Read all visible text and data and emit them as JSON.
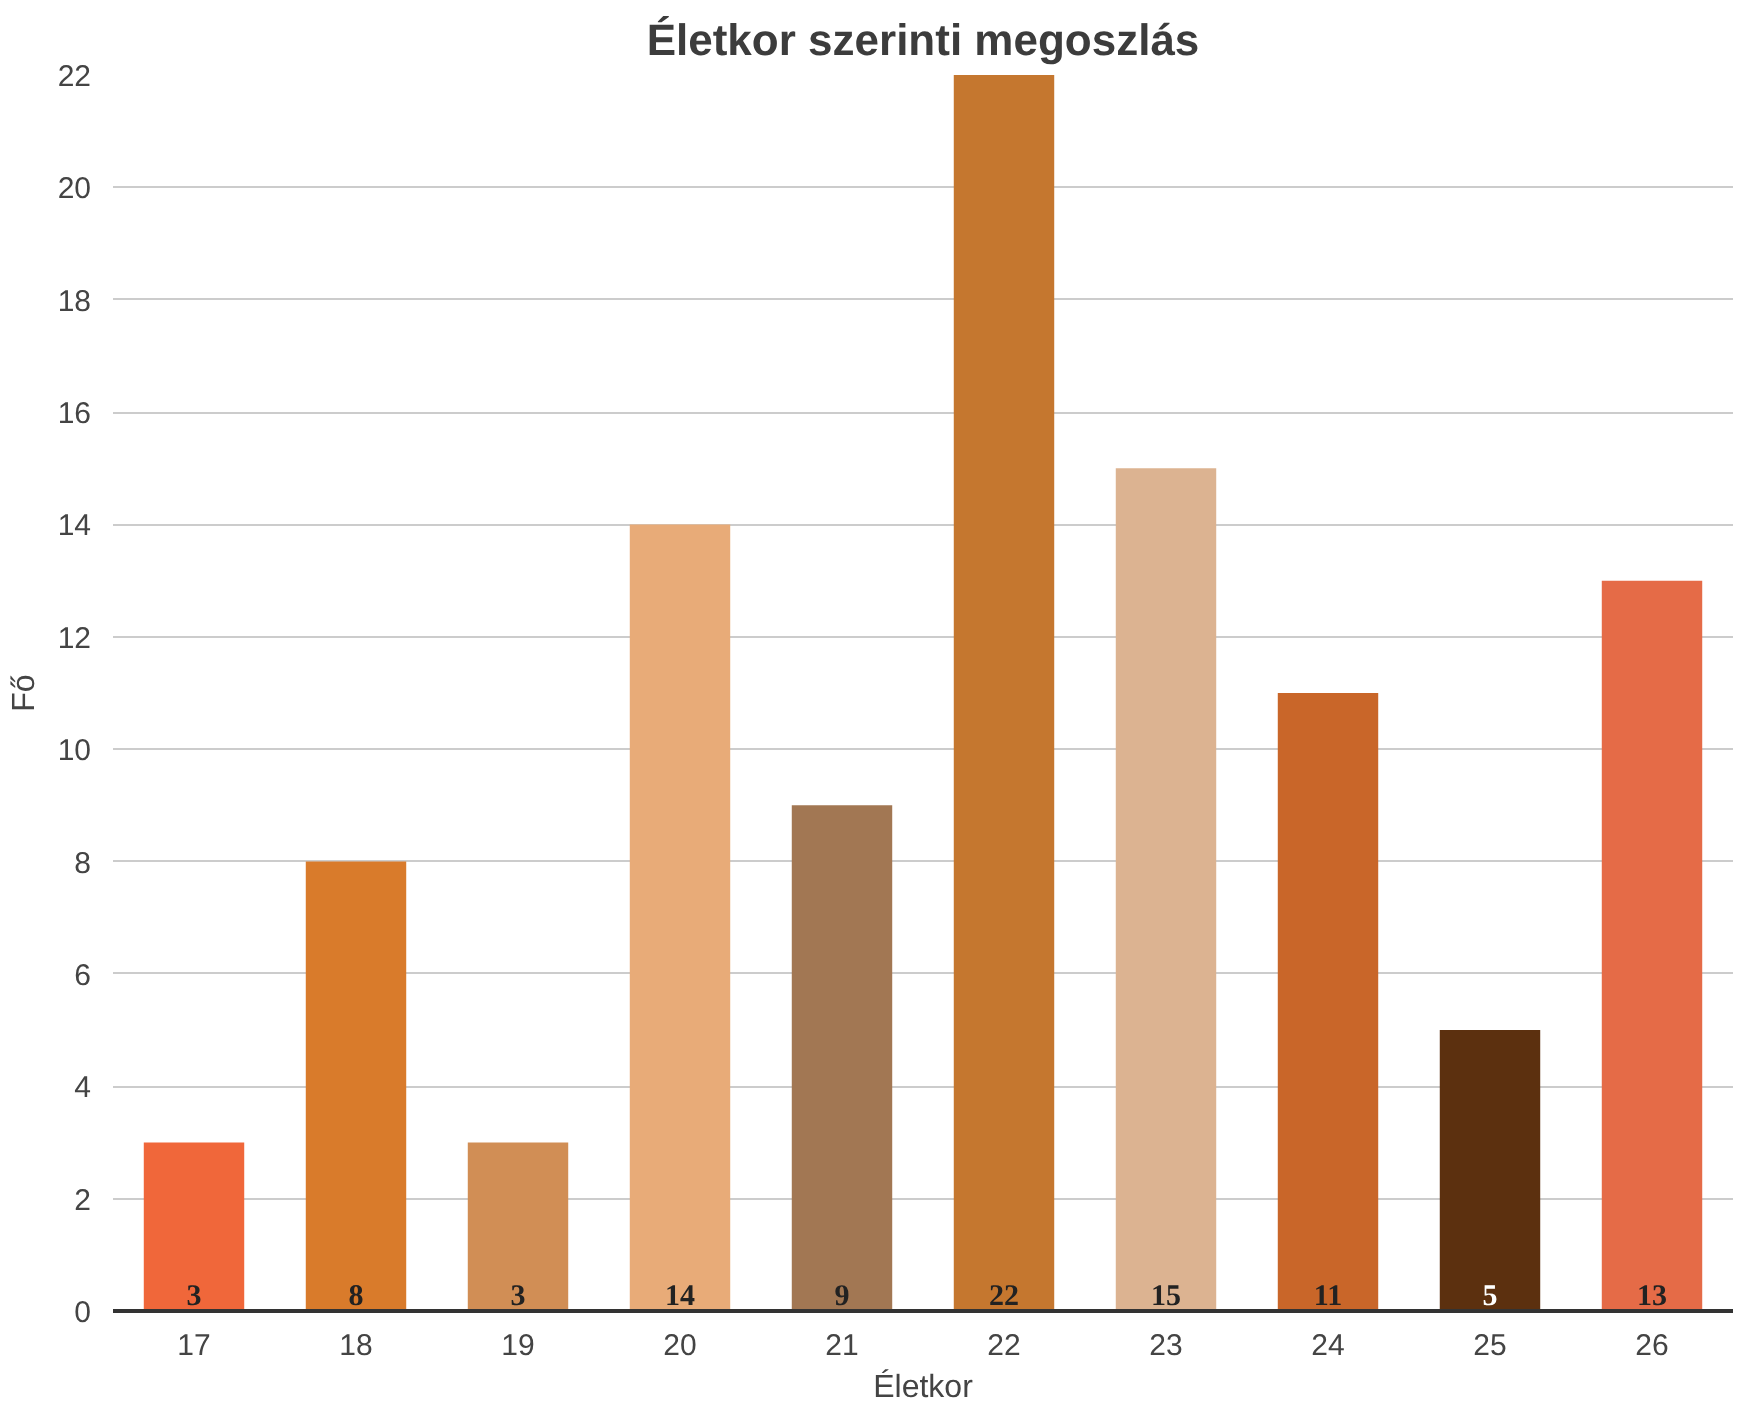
{
  "chart_data": {
    "type": "bar",
    "title": "Életkor szerinti megoszlás",
    "xlabel": "Életkor",
    "ylabel": "Fő",
    "categories": [
      "17",
      "18",
      "19",
      "20",
      "21",
      "22",
      "23",
      "24",
      "25",
      "26"
    ],
    "values": [
      3,
      8,
      3,
      14,
      9,
      22,
      15,
      11,
      5,
      13
    ],
    "colors": [
      "#f0673a",
      "#d97b2b",
      "#d18e55",
      "#e8ab78",
      "#a27753",
      "#c5772f",
      "#dcb391",
      "#c96629",
      "#5c300f",
      "#e56b47"
    ],
    "ylim": [
      0,
      22
    ],
    "yticks": [
      0,
      2,
      4,
      6,
      8,
      10,
      12,
      14,
      16,
      18,
      20,
      22
    ],
    "grid": "y",
    "data_labels": true
  }
}
